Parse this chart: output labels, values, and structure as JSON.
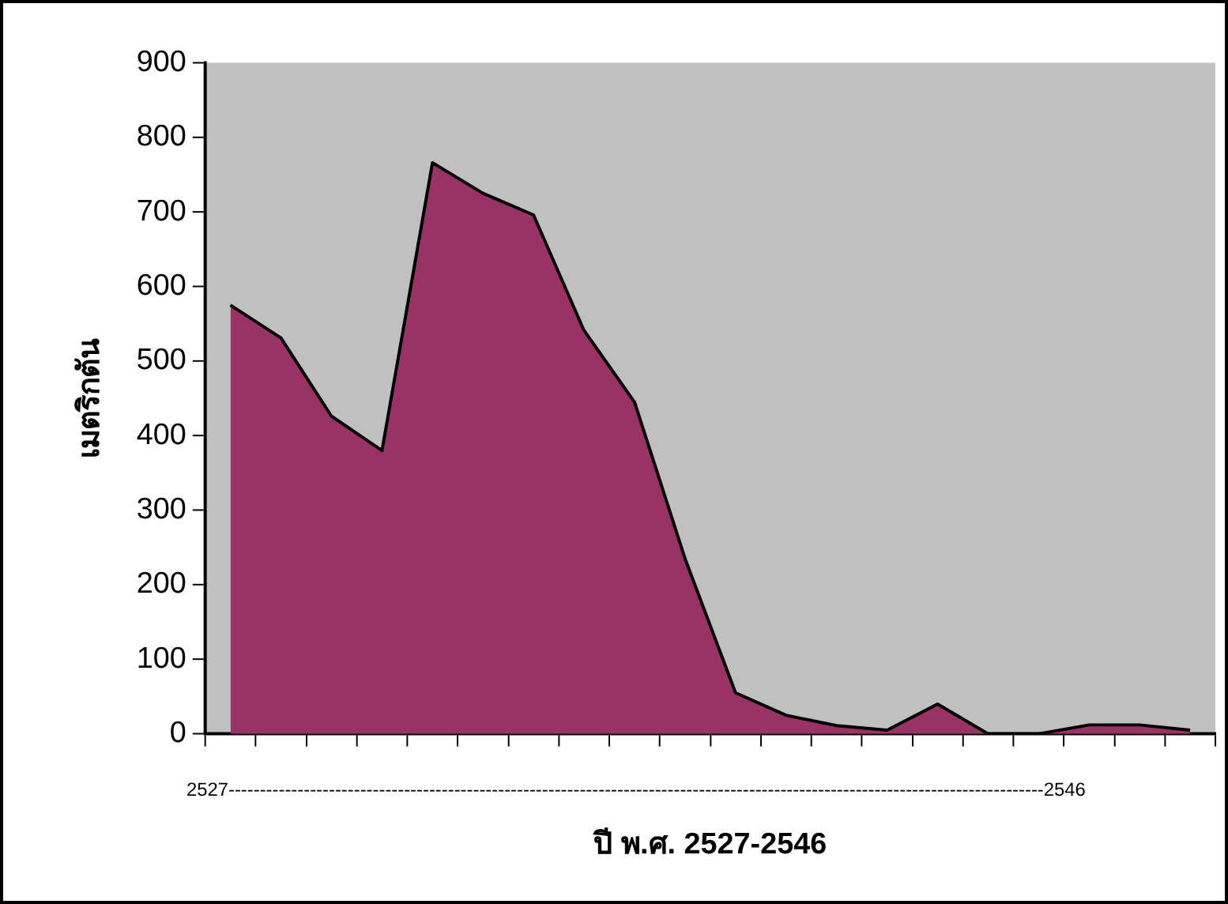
{
  "chart_data": {
    "type": "area",
    "xlabel": "ปี พ.ศ. 2527-2546",
    "ylabel": "เมตริกตัน",
    "categories": [
      null,
      null,
      null,
      null,
      null,
      null,
      null,
      null,
      null,
      null,
      null,
      null,
      null,
      null,
      null,
      null,
      null,
      null,
      null,
      null
    ],
    "series": [
      {
        "color": "#993366",
        "values": [
          575,
          531,
          426,
          380,
          766,
          725,
          696,
          541,
          445,
          235,
          55,
          25,
          11,
          5,
          40,
          0,
          0,
          12,
          12,
          5
        ]
      }
    ],
    "ylim": [
      0,
      900
    ],
    "yticks": [
      0,
      100,
      200,
      300,
      400,
      500,
      600,
      700,
      800,
      900
    ],
    "grid": false,
    "legend": false,
    "annotations": [
      "2527----------------------------------------------------------------------------------------------------------------------------------2546"
    ]
  }
}
